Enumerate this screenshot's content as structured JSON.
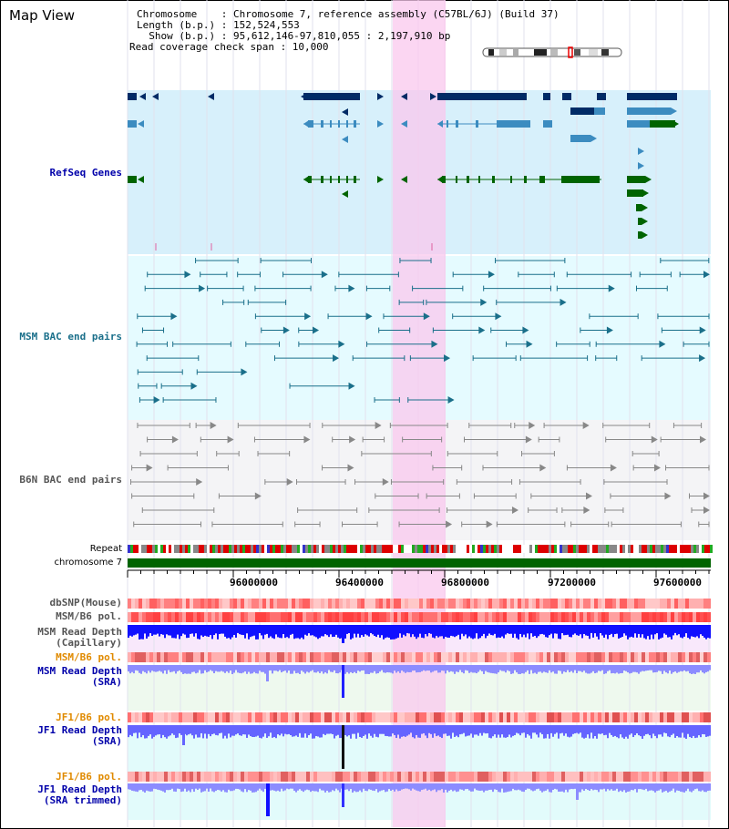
{
  "title": "Map View",
  "info": {
    "chromosome": "Chromosome    : Chromosome 7, reference assembly (C57BL/6J) (Build 37)",
    "length": "Length (b.p.) : 152,524,553",
    "show": "  Show (b.p.) : 95,612,146-97,810,055 : 2,197,910 bp",
    "coverage": "Read coverage check span : 10,000"
  },
  "tracks": {
    "refseq": "RefSeq Genes",
    "msm_bac": "MSM BAC end pairs",
    "b6n_bac": "B6N BAC end pairs",
    "repeat": "Repeat",
    "chromosome": "chromosome 7",
    "dbsnp": "dbSNP(Mouse)",
    "msm_pol1": "MSM/B6 pol.",
    "msm_depth_cap_1": "MSM Read Depth",
    "msm_depth_cap_2": "(Capillary)",
    "msm_pol2": "MSM/B6 pol.",
    "msm_depth_sra_1": "MSM Read Depth",
    "msm_depth_sra_2": "(SRA)",
    "jf1_pol1": "JF1/B6 pol.",
    "jf1_depth_sra_1": "JF1 Read Depth",
    "jf1_depth_sra_2": "(SRA)",
    "jf1_pol2": "JF1/B6 pol.",
    "jf1_depth_trim_1": "JF1 Read Depth",
    "jf1_depth_trim_2": "(SRA trimmed)"
  },
  "axis_ticks": [
    "96000000",
    "96400000",
    "96800000",
    "97200000",
    "97600000"
  ],
  "colors": {
    "navy": "#002b66",
    "mid_blue": "#3c8cc0",
    "green": "#006400",
    "bac_blue": "#1a6f8a",
    "gray": "#888888",
    "label_blue": "#0000aa",
    "label_teal": "#1a6f8a",
    "label_gray": "#555555",
    "label_orange": "#e08a00",
    "highlight": "#f9c8ee"
  }
}
